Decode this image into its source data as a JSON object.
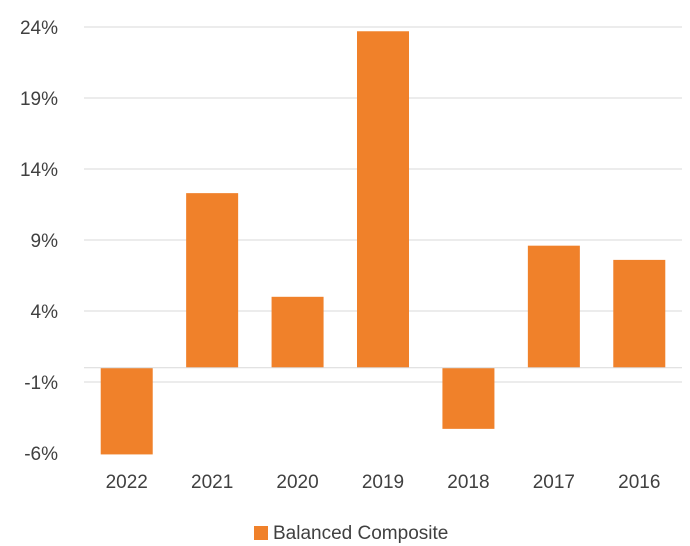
{
  "chart_data": {
    "type": "bar",
    "categories": [
      "2022",
      "2021",
      "2020",
      "2019",
      "2018",
      "2017",
      "2016"
    ],
    "series": [
      {
        "name": "Balanced Composite",
        "values": [
          -6.1,
          12.3,
          5.0,
          23.7,
          -4.3,
          8.6,
          7.6
        ],
        "color": "#F0812A"
      }
    ],
    "y_ticks": [
      "24%",
      "19%",
      "14%",
      "9%",
      "4%",
      "-1%",
      "-6%"
    ],
    "ylim": [
      -6,
      24
    ],
    "y_tick_values": [
      24,
      19,
      14,
      9,
      4,
      -1,
      -6
    ],
    "grid": true,
    "legend": {
      "position": "bottom",
      "entries": [
        "Balanced Composite"
      ]
    },
    "gridline_color": "#D9D9D9",
    "text_color": "#404040"
  }
}
